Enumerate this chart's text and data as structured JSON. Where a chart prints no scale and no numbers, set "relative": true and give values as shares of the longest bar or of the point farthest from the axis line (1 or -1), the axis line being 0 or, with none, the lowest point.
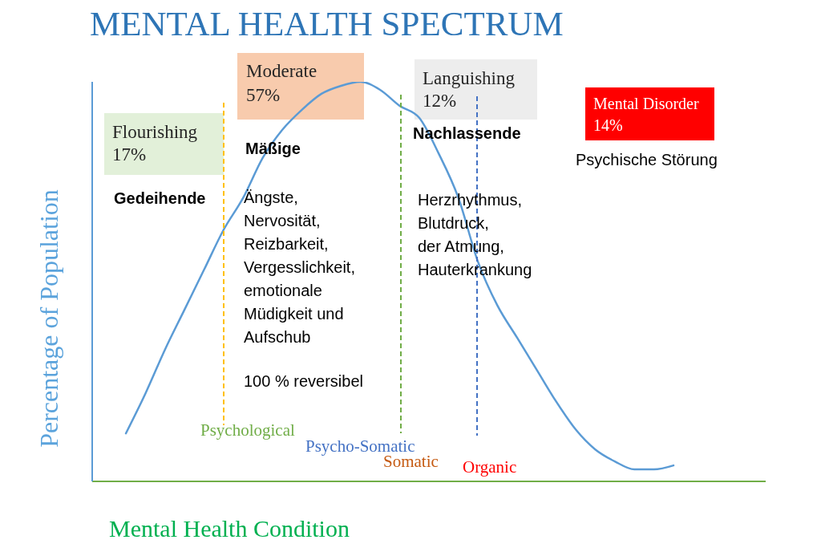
{
  "chart_data": {
    "type": "line",
    "title": "MENTAL HEALTH SPECTRUM",
    "xlabel": "Mental Health Condition",
    "ylabel": "Percentage of Population",
    "relative": true,
    "marker": "none",
    "categories": [
      null,
      null,
      null,
      null,
      null,
      null,
      null,
      null,
      null,
      null,
      null,
      null,
      null,
      null,
      null,
      null,
      null,
      null,
      null,
      null,
      null,
      null,
      null,
      null,
      null,
      null,
      null,
      null,
      null
    ],
    "series": [
      {
        "color": "#5b9bd5",
        "values": [
          0.12,
          0.22,
          0.33,
          0.43,
          0.53,
          0.63,
          0.71,
          0.81,
          0.88,
          0.93,
          0.97,
          0.99,
          1,
          0.98,
          0.94,
          0.91,
          0.82,
          0.71,
          0.55,
          0.44,
          0.36,
          0.28,
          0.2,
          0.13,
          0.08,
          0.05,
          0.03,
          0.03,
          0.04
        ]
      }
    ],
    "annotations": [
      "Flourishing\n17%",
      "Moderate\n57%",
      "Languishing\n12%",
      "Mental Disorder\n14%",
      "Gedeihende",
      "Mäßige",
      "Nachlassende",
      "Psychische Störung",
      "Ängste,\nNervosität,\nReizbarkeit,\nVergesslichkeit,\nemotionale\nMüdigkeit und\nAufschub",
      "100 % reversibel",
      "Herzrhythmus,\nBlutdruck,\nder Atmung,\nHauterkrankung",
      "Psychological",
      "Psycho-Somatic",
      "Somatic",
      "Organic"
    ]
  }
}
